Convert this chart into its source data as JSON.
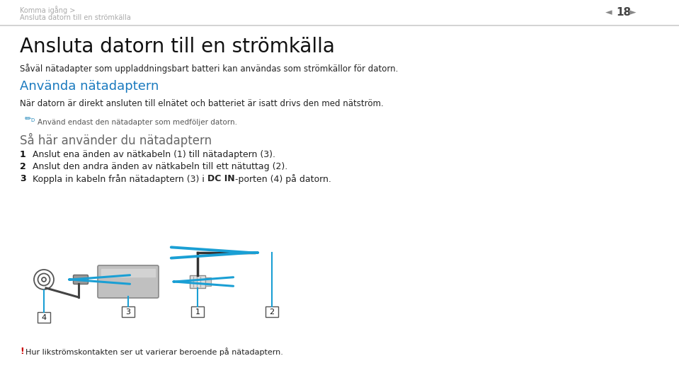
{
  "bg_color": "#f5f5f5",
  "page_bg": "#ffffff",
  "header_line1": "Komma igång >",
  "header_line2": "Ansluta datorn till en strömkälla",
  "header_page": "18",
  "header_text_color": "#aaaaaa",
  "title": "Ansluta datorn till en strömkälla",
  "subtitle": "Såväl nätadapter som uppladdningsbart batteri kan användas som strömkällor för datorn.",
  "section_title": "Använda nätadaptern",
  "section_title_color": "#1a7abf",
  "section_body": "När datorn är direkt ansluten till elnätet och batteriet är isatt drivs den med nätström.",
  "note_text": "Använd endast den nätadapter som medföljer datorn.",
  "subsection_title": "Så här använder du nätadaptern",
  "step1": "Anslut ena änden av nätkabeln (1) till nätadaptern (3).",
  "step2": "Anslut den andra änden av nätkabeln till ett nätuttag (2).",
  "step3_pre": "Koppla in kabeln från nätadaptern (3) i ",
  "step3_bold": "DC IN",
  "step3_post": "-porten (4) på datorn.",
  "footer_exclamation": "!",
  "footer_exclamation_color": "#cc0000",
  "footer_text": "Hur likströmskontakten ser ut varierar beroende på nätadaptern.",
  "blue_color": "#1a9fd4",
  "sep_color": "#cccccc",
  "text_color": "#222222",
  "label_color": "#333333"
}
